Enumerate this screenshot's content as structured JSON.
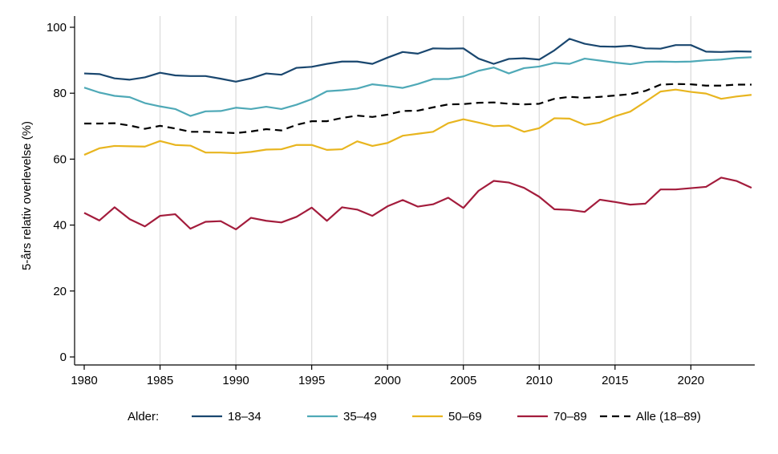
{
  "chart_data": {
    "type": "line",
    "ylabel": "5-års relativ overlevelse (%)",
    "xlabel": "",
    "ylim": [
      0,
      100
    ],
    "xlim": [
      1980,
      2024
    ],
    "yticks": [
      0,
      20,
      40,
      60,
      80,
      100
    ],
    "xticks": [
      1980,
      1985,
      1990,
      1995,
      2000,
      2005,
      2010,
      2015,
      2020
    ],
    "grid": "vertical",
    "legend_title": "Alder:",
    "legend_position": "bottom",
    "x": [
      1980,
      1981,
      1982,
      1983,
      1984,
      1985,
      1986,
      1987,
      1988,
      1989,
      1990,
      1991,
      1992,
      1993,
      1994,
      1995,
      1996,
      1997,
      1998,
      1999,
      2000,
      2001,
      2002,
      2003,
      2004,
      2005,
      2006,
      2007,
      2008,
      2009,
      2010,
      2011,
      2012,
      2013,
      2014,
      2015,
      2016,
      2017,
      2018,
      2019,
      2020,
      2021,
      2022,
      2023,
      2024
    ],
    "series": [
      {
        "name": "18–34",
        "color": "#1a476f",
        "dash": "solid",
        "values": [
          86.0,
          85.8,
          84.5,
          84.1,
          84.8,
          86.2,
          85.4,
          85.2,
          85.2,
          84.4,
          83.5,
          84.5,
          86.0,
          85.6,
          87.7,
          88.0,
          88.9,
          89.6,
          89.6,
          88.9,
          90.8,
          92.5,
          92.0,
          93.6,
          93.5,
          93.6,
          90.5,
          88.9,
          90.4,
          90.6,
          90.2,
          93.0,
          96.5,
          95.0,
          94.2,
          94.1,
          94.4,
          93.6,
          93.5,
          94.6,
          94.6,
          92.6,
          92.5,
          92.7,
          92.6
        ]
      },
      {
        "name": "35–49",
        "color": "#4fa9b7",
        "dash": "solid",
        "values": [
          81.7,
          80.2,
          79.2,
          78.8,
          77.0,
          76.0,
          75.2,
          73.1,
          74.5,
          74.6,
          75.6,
          75.2,
          75.9,
          75.2,
          76.5,
          78.2,
          80.6,
          80.9,
          81.4,
          82.7,
          82.2,
          81.6,
          82.8,
          84.3,
          84.3,
          85.1,
          86.8,
          87.8,
          86.0,
          87.6,
          88.1,
          89.2,
          88.9,
          90.5,
          89.9,
          89.3,
          88.8,
          89.5,
          89.6,
          89.5,
          89.6,
          90.0,
          90.2,
          90.7,
          90.9
        ]
      },
      {
        "name": "50–69",
        "color": "#e8b51f",
        "dash": "solid",
        "values": [
          61.3,
          63.3,
          64.0,
          63.9,
          63.8,
          65.5,
          64.3,
          64.1,
          62.0,
          62.0,
          61.8,
          62.2,
          62.9,
          63.0,
          64.3,
          64.3,
          62.8,
          63.0,
          65.4,
          64.0,
          64.9,
          67.1,
          67.7,
          68.3,
          70.9,
          72.1,
          71.1,
          70.0,
          70.2,
          68.3,
          69.4,
          72.4,
          72.3,
          70.4,
          71.1,
          73.0,
          74.4,
          77.4,
          80.5,
          81.1,
          80.4,
          79.9,
          78.3,
          79.0,
          79.5
        ]
      },
      {
        "name": "70–89",
        "color": "#a31c3c",
        "dash": "solid",
        "values": [
          43.7,
          41.4,
          45.4,
          41.8,
          39.6,
          42.8,
          43.3,
          38.9,
          41.0,
          41.2,
          38.7,
          42.2,
          41.3,
          40.8,
          42.5,
          45.3,
          41.3,
          45.4,
          44.7,
          42.8,
          45.7,
          47.6,
          45.6,
          46.3,
          48.3,
          45.2,
          50.4,
          53.4,
          52.9,
          51.3,
          48.6,
          44.8,
          44.6,
          44.0,
          47.7,
          47.0,
          46.2,
          46.5,
          50.8,
          50.8,
          51.2,
          51.6,
          54.4,
          53.4,
          51.3
        ]
      },
      {
        "name": "Alle (18–89)",
        "color": "#000000",
        "dash": "dashed",
        "values": [
          70.8,
          70.8,
          70.9,
          70.2,
          69.2,
          70.1,
          69.3,
          68.3,
          68.3,
          68.1,
          67.9,
          68.4,
          69.1,
          68.7,
          70.4,
          71.5,
          71.5,
          72.5,
          73.2,
          72.8,
          73.5,
          74.6,
          74.7,
          75.7,
          76.6,
          76.7,
          77.1,
          77.2,
          76.8,
          76.6,
          76.8,
          78.3,
          78.9,
          78.6,
          78.9,
          79.3,
          79.7,
          80.7,
          82.6,
          82.8,
          82.7,
          82.3,
          82.3,
          82.6,
          82.6
        ]
      }
    ]
  }
}
